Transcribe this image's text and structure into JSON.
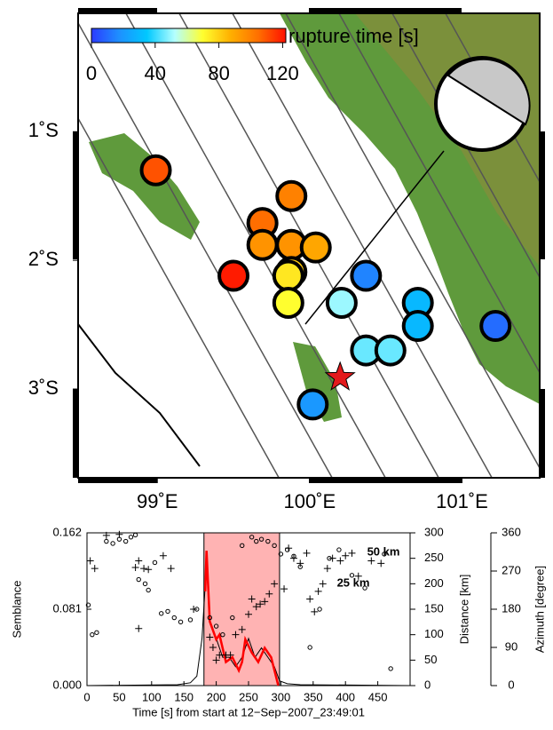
{
  "chart_data": [
    {
      "type": "scatter",
      "xlim": [
        98.48,
        101.51
      ],
      "ylim": [
        -3.69,
        -0.08
      ],
      "xticks": [
        {
          "value": 99,
          "label": "99˚E"
        },
        {
          "value": 100,
          "label": "100˚E"
        },
        {
          "value": 101,
          "label": "101˚E"
        }
      ],
      "yticks": [
        {
          "value": -1,
          "label": "1˚S"
        },
        {
          "value": -2,
          "label": "2˚S"
        },
        {
          "value": -3,
          "label": "3˚S"
        }
      ],
      "colorbar": {
        "label": "rupture time [s]",
        "lim": [
          0,
          122
        ],
        "ticks": [
          0,
          40,
          80,
          120
        ],
        "colors": [
          "#2b3bff",
          "#1e90ff",
          "#00c8ff",
          "#b4ffff",
          "#ffff30",
          "#ffb000",
          "#ff7000",
          "#ff1000"
        ]
      },
      "x": [
        98.99,
        99.88,
        99.69,
        99.69,
        99.88,
        100.04,
        99.88,
        99.5,
        99.86,
        99.86,
        100.21,
        100.37,
        100.71,
        100.71,
        101.22,
        100.37,
        100.53,
        100.02
      ],
      "y": [
        -1.3,
        -1.5,
        -1.71,
        -1.88,
        -1.88,
        -1.9,
        -2.09,
        -2.12,
        -2.12,
        -2.33,
        -2.33,
        -2.12,
        -2.33,
        -2.51,
        -2.51,
        -2.7,
        -2.7,
        -3.12
      ],
      "values": [
        110,
        100,
        105,
        95,
        95,
        90,
        82,
        120,
        75,
        70,
        50,
        15,
        30,
        30,
        10,
        45,
        45,
        20
      ],
      "epicenter": {
        "x": 100.2,
        "y": -2.91,
        "color": "#e31a1c"
      }
    },
    {
      "type": "line",
      "xlabel": "Time [s] from start at 12−Sep−2007_23:49:01",
      "ylabel": "Semblance",
      "y2label": "Distance  [km]",
      "y3label": "Azimuth  [degree]",
      "xlim": [
        0,
        500
      ],
      "xticks": [
        0,
        50,
        100,
        150,
        200,
        250,
        300,
        350,
        400,
        450
      ],
      "ylim": [
        0,
        0.162
      ],
      "yticks": [
        {
          "value": 0,
          "label": "0.000"
        },
        {
          "value": 0.081,
          "label": "0.081"
        },
        {
          "value": 0.162,
          "label": "0.162"
        }
      ],
      "y2lim": [
        0,
        300
      ],
      "y2ticks": [
        0,
        50,
        100,
        150,
        200,
        250,
        300
      ],
      "y3lim": [
        0,
        360
      ],
      "y3ticks": [
        0,
        90,
        180,
        270,
        360
      ],
      "highlight": {
        "x": [
          181,
          298
        ],
        "color": "#ffb3b3"
      },
      "annotations": [
        "50 km",
        "25 km"
      ],
      "series": [
        {
          "kind": "line",
          "color": "#000000",
          "x": [
            0,
            140,
            160,
            170,
            178,
            185,
            190,
            200,
            210,
            220,
            230,
            240,
            250,
            260,
            270,
            280,
            290,
            298,
            310,
            330,
            500
          ],
          "values": [
            0,
            0.001,
            0.003,
            0.01,
            0.05,
            0.13,
            0.07,
            0.05,
            0.03,
            0.03,
            0.02,
            0.03,
            0.05,
            0.03,
            0.04,
            0.03,
            0.02,
            0.005,
            0.002,
            0.001,
            0
          ]
        },
        {
          "kind": "line",
          "color": "#ff0000",
          "x": [
            183,
            185,
            190,
            200,
            205,
            215,
            225,
            235,
            240,
            245,
            255,
            265,
            275,
            285,
            296
          ],
          "values": [
            0.1,
            0.143,
            0.068,
            0.049,
            0.054,
            0.025,
            0.03,
            0.016,
            0.025,
            0.049,
            0.035,
            0.025,
            0.04,
            0.03,
            0.0
          ]
        },
        {
          "kind": "scatter",
          "marker": "+",
          "axis": "y2",
          "color": "#000000",
          "x": [
            5,
            12,
            30,
            50,
            75,
            80,
            88,
            95,
            80,
            118,
            130,
            165,
            190,
            195,
            200,
            205,
            215,
            222,
            230,
            240,
            250,
            255,
            262,
            268,
            275,
            282,
            290,
            305,
            312,
            320,
            330,
            340,
            345,
            352,
            358,
            365,
            372,
            380,
            392,
            400,
            410,
            420,
            440,
            455
          ],
          "values": [
            245,
            230,
            295,
            297,
            232,
            245,
            230,
            228,
            112,
            255,
            230,
            150,
            95,
            75,
            50,
            60,
            60,
            60,
            100,
            110,
            140,
            170,
            155,
            160,
            165,
            180,
            200,
            190,
            270,
            250,
            240,
            260,
            170,
            145,
            185,
            200,
            230,
            250,
            245,
            255,
            260,
            215,
            245,
            240
          ]
        },
        {
          "kind": "scatter",
          "marker": "o",
          "axis": "y3",
          "color": "#000000",
          "x": [
            2,
            8,
            15,
            30,
            40,
            50,
            60,
            68,
            75,
            80,
            90,
            95,
            105,
            115,
            125,
            135,
            145,
            160,
            170,
            190,
            200,
            210,
            225,
            240,
            255,
            262,
            270,
            280,
            290,
            300,
            310,
            320,
            330,
            345,
            360,
            375,
            390,
            410,
            430,
            460,
            470
          ],
          "values": [
            190,
            120,
            125,
            340,
            335,
            345,
            340,
            350,
            355,
            250,
            240,
            225,
            290,
            170,
            175,
            160,
            150,
            155,
            180,
            160,
            140,
            120,
            160,
            330,
            350,
            340,
            345,
            340,
            330,
            310,
            320,
            305,
            280,
            90,
            180,
            300,
            320,
            260,
            230,
            310,
            40
          ]
        }
      ]
    }
  ]
}
